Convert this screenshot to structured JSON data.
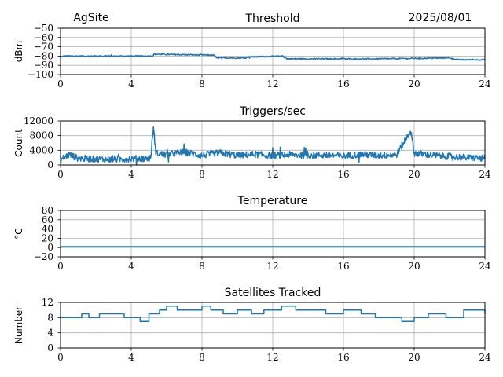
{
  "header": {
    "site": "AgSite",
    "date": "2025/08/01"
  },
  "colors": {
    "series": "#1f77b4",
    "grid": "#b0b0b0"
  },
  "chart_data": [
    {
      "type": "line",
      "title": "Threshold",
      "ylabel": "dBm",
      "xlabel": "",
      "xlim": [
        0,
        24
      ],
      "ylim": [
        -100,
        -50
      ],
      "xticks": [
        0,
        4,
        8,
        12,
        16,
        20,
        24
      ],
      "yticks": [
        -100,
        -90,
        -80,
        -70,
        -60,
        -50
      ],
      "ytick_labels": [
        "−100",
        "−90",
        "−80",
        "−70",
        "−60",
        "−50"
      ],
      "grid": true,
      "noise": 0.6,
      "x": [
        0,
        0.2,
        5.2,
        5.3,
        8.7,
        8.8,
        10.5,
        10.6,
        12.6,
        12.8,
        18,
        22,
        22.5,
        24
      ],
      "y": [
        -81,
        -80,
        -80,
        -78,
        -79,
        -82,
        -82,
        -81,
        -80,
        -83,
        -83,
        -82,
        -84,
        -84
      ]
    },
    {
      "type": "line",
      "title": "Triggers/sec",
      "ylabel": "Count",
      "xlabel": "",
      "xlim": [
        0,
        24
      ],
      "ylim": [
        0,
        12000
      ],
      "xticks": [
        0,
        4,
        8,
        12,
        16,
        20,
        24
      ],
      "yticks": [
        0,
        4000,
        8000,
        12000
      ],
      "ytick_labels": [
        "0",
        "4000",
        "8000",
        "12000"
      ],
      "grid": true,
      "noise": 900,
      "x": [
        0,
        0.5,
        1,
        2,
        3,
        4,
        5,
        5.1,
        5.25,
        5.4,
        6,
        7,
        8,
        9,
        10,
        11,
        12,
        13,
        14,
        15,
        16,
        17,
        18,
        19,
        19.8,
        20,
        21,
        22,
        23,
        24
      ],
      "y": [
        1500,
        2800,
        1800,
        1600,
        1500,
        1700,
        1800,
        1900,
        10200,
        3200,
        2800,
        3500,
        2600,
        3300,
        2600,
        2900,
        2500,
        2800,
        2600,
        2700,
        2400,
        2900,
        2600,
        2800,
        9400,
        3200,
        2700,
        2300,
        2000,
        1800
      ]
    },
    {
      "type": "line",
      "title": "Temperature",
      "ylabel": "°C",
      "xlabel": "",
      "xlim": [
        0,
        24
      ],
      "ylim": [
        -20,
        80
      ],
      "xticks": [
        0,
        4,
        8,
        12,
        16,
        20,
        24
      ],
      "yticks": [
        -20,
        0,
        20,
        40,
        60,
        80
      ],
      "ytick_labels": [
        "−20",
        "0",
        "20",
        "40",
        "60",
        "80"
      ],
      "grid": true,
      "noise": 0,
      "x": [
        0,
        24
      ],
      "y": [
        2,
        2
      ]
    },
    {
      "type": "line",
      "title": "Satellites Tracked",
      "ylabel": "Number",
      "xlabel": "",
      "xlim": [
        0,
        24
      ],
      "ylim": [
        0,
        12
      ],
      "xticks": [
        0,
        4,
        8,
        12,
        16,
        20,
        24
      ],
      "yticks": [
        0,
        4,
        8,
        12
      ],
      "ytick_labels": [
        "0",
        "4",
        "8",
        "12"
      ],
      "grid": true,
      "step": true,
      "x": [
        0,
        1.2,
        1.6,
        2.2,
        3.0,
        3.6,
        4.5,
        5.0,
        5.6,
        6.0,
        6.6,
        7.2,
        8.0,
        8.5,
        9.2,
        10.0,
        10.8,
        11.5,
        12.5,
        13.3,
        14.2,
        15.0,
        16.0,
        17.0,
        17.8,
        18.5,
        19.3,
        20.0,
        20.8,
        21.8,
        22.8,
        24
      ],
      "y": [
        8,
        9,
        8,
        9,
        9,
        8,
        7,
        9,
        10,
        11,
        10,
        10,
        11,
        10,
        9,
        10,
        9,
        10,
        11,
        10,
        10,
        9,
        10,
        9,
        8,
        8,
        7,
        8,
        9,
        8,
        10,
        9
      ]
    }
  ]
}
